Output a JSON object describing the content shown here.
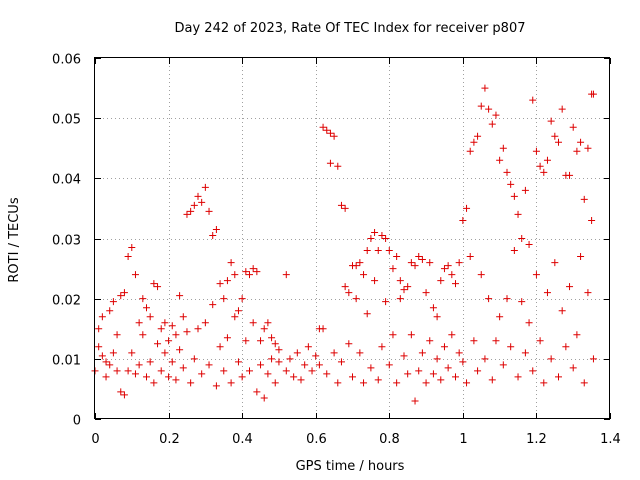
{
  "chart_data": {
    "type": "scatter",
    "title": "Day 242 of 2023, Rate Of TEC Index for receiver p807",
    "xlabel": "GPS time / hours",
    "ylabel": "ROTI / TECUs",
    "xlim": [
      0,
      1.4
    ],
    "ylim": [
      0,
      0.06
    ],
    "x_ticks": [
      "0",
      "0.2",
      "0.4",
      "0.6",
      "0.8",
      "1",
      "1.2",
      "1.4"
    ],
    "y_ticks": [
      "0",
      "0.01",
      "0.02",
      "0.03",
      "0.04",
      "0.05",
      "0.06"
    ],
    "grid": true,
    "marker": "+",
    "color": "#dd0000",
    "series": [
      {
        "points": [
          [
            0.0,
            0.008
          ],
          [
            0.01,
            0.012
          ],
          [
            0.01,
            0.015
          ],
          [
            0.02,
            0.0105
          ],
          [
            0.02,
            0.017
          ],
          [
            0.03,
            0.007
          ],
          [
            0.03,
            0.0095
          ],
          [
            0.04,
            0.018
          ],
          [
            0.04,
            0.009
          ],
          [
            0.05,
            0.0195
          ],
          [
            0.05,
            0.011
          ],
          [
            0.06,
            0.014
          ],
          [
            0.06,
            0.008
          ],
          [
            0.07,
            0.0205
          ],
          [
            0.07,
            0.0045
          ],
          [
            0.08,
            0.004
          ],
          [
            0.08,
            0.021
          ],
          [
            0.09,
            0.027
          ],
          [
            0.09,
            0.008
          ],
          [
            0.1,
            0.0285
          ],
          [
            0.1,
            0.011
          ],
          [
            0.11,
            0.024
          ],
          [
            0.11,
            0.0075
          ],
          [
            0.12,
            0.016
          ],
          [
            0.12,
            0.009
          ],
          [
            0.13,
            0.02
          ],
          [
            0.13,
            0.014
          ],
          [
            0.14,
            0.0185
          ],
          [
            0.14,
            0.007
          ],
          [
            0.15,
            0.017
          ],
          [
            0.15,
            0.0095
          ],
          [
            0.16,
            0.0225
          ],
          [
            0.16,
            0.006
          ],
          [
            0.17,
            0.022
          ],
          [
            0.17,
            0.0125
          ],
          [
            0.18,
            0.015
          ],
          [
            0.18,
            0.008
          ],
          [
            0.19,
            0.016
          ],
          [
            0.19,
            0.011
          ],
          [
            0.2,
            0.013
          ],
          [
            0.2,
            0.007
          ],
          [
            0.21,
            0.0155
          ],
          [
            0.21,
            0.0095
          ],
          [
            0.22,
            0.014
          ],
          [
            0.22,
            0.0065
          ],
          [
            0.23,
            0.0205
          ],
          [
            0.23,
            0.0115
          ],
          [
            0.24,
            0.017
          ],
          [
            0.24,
            0.0085
          ],
          [
            0.25,
            0.034
          ],
          [
            0.25,
            0.0145
          ],
          [
            0.26,
            0.0345
          ],
          [
            0.26,
            0.006
          ],
          [
            0.27,
            0.0355
          ],
          [
            0.27,
            0.01
          ],
          [
            0.28,
            0.037
          ],
          [
            0.28,
            0.015
          ],
          [
            0.29,
            0.036
          ],
          [
            0.29,
            0.0075
          ],
          [
            0.3,
            0.0385
          ],
          [
            0.3,
            0.016
          ],
          [
            0.31,
            0.0345
          ],
          [
            0.31,
            0.009
          ],
          [
            0.32,
            0.0305
          ],
          [
            0.32,
            0.019
          ],
          [
            0.33,
            0.0315
          ],
          [
            0.33,
            0.0055
          ],
          [
            0.34,
            0.0225
          ],
          [
            0.34,
            0.012
          ],
          [
            0.35,
            0.02
          ],
          [
            0.35,
            0.008
          ],
          [
            0.36,
            0.023
          ],
          [
            0.36,
            0.0135
          ],
          [
            0.37,
            0.026
          ],
          [
            0.37,
            0.006
          ],
          [
            0.38,
            0.024
          ],
          [
            0.38,
            0.017
          ],
          [
            0.39,
            0.018
          ],
          [
            0.39,
            0.0095
          ],
          [
            0.4,
            0.02
          ],
          [
            0.4,
            0.007
          ],
          [
            0.41,
            0.0245
          ],
          [
            0.41,
            0.013
          ],
          [
            0.42,
            0.024
          ],
          [
            0.42,
            0.008
          ],
          [
            0.43,
            0.025
          ],
          [
            0.43,
            0.016
          ],
          [
            0.44,
            0.0245
          ],
          [
            0.44,
            0.0045
          ],
          [
            0.45,
            0.013
          ],
          [
            0.45,
            0.009
          ],
          [
            0.46,
            0.015
          ],
          [
            0.46,
            0.0035
          ],
          [
            0.47,
            0.016
          ],
          [
            0.47,
            0.0075
          ],
          [
            0.48,
            0.0135
          ],
          [
            0.48,
            0.01
          ],
          [
            0.49,
            0.0125
          ],
          [
            0.49,
            0.006
          ],
          [
            0.5,
            0.0095
          ],
          [
            0.5,
            0.0115
          ],
          [
            0.52,
            0.024
          ],
          [
            0.52,
            0.008
          ],
          [
            0.53,
            0.01
          ],
          [
            0.54,
            0.007
          ],
          [
            0.55,
            0.011
          ],
          [
            0.56,
            0.0065
          ],
          [
            0.57,
            0.009
          ],
          [
            0.58,
            0.012
          ],
          [
            0.59,
            0.008
          ],
          [
            0.6,
            0.0105
          ],
          [
            0.61,
            0.015
          ],
          [
            0.61,
            0.009
          ],
          [
            0.62,
            0.0485
          ],
          [
            0.62,
            0.015
          ],
          [
            0.63,
            0.048
          ],
          [
            0.63,
            0.0075
          ],
          [
            0.64,
            0.0475
          ],
          [
            0.64,
            0.0425
          ],
          [
            0.65,
            0.047
          ],
          [
            0.65,
            0.011
          ],
          [
            0.66,
            0.042
          ],
          [
            0.66,
            0.006
          ],
          [
            0.67,
            0.0355
          ],
          [
            0.67,
            0.0095
          ],
          [
            0.68,
            0.035
          ],
          [
            0.68,
            0.022
          ],
          [
            0.69,
            0.021
          ],
          [
            0.69,
            0.0125
          ],
          [
            0.7,
            0.0255
          ],
          [
            0.7,
            0.007
          ],
          [
            0.71,
            0.0255
          ],
          [
            0.71,
            0.02
          ],
          [
            0.72,
            0.026
          ],
          [
            0.72,
            0.011
          ],
          [
            0.73,
            0.024
          ],
          [
            0.73,
            0.006
          ],
          [
            0.74,
            0.028
          ],
          [
            0.74,
            0.0175
          ],
          [
            0.75,
            0.03
          ],
          [
            0.75,
            0.0085
          ],
          [
            0.76,
            0.031
          ],
          [
            0.76,
            0.023
          ],
          [
            0.77,
            0.028
          ],
          [
            0.77,
            0.0065
          ],
          [
            0.78,
            0.0305
          ],
          [
            0.78,
            0.012
          ],
          [
            0.79,
            0.03
          ],
          [
            0.79,
            0.0195
          ],
          [
            0.8,
            0.028
          ],
          [
            0.8,
            0.009
          ],
          [
            0.81,
            0.025
          ],
          [
            0.81,
            0.014
          ],
          [
            0.82,
            0.027
          ],
          [
            0.82,
            0.006
          ],
          [
            0.83,
            0.023
          ],
          [
            0.83,
            0.02
          ],
          [
            0.84,
            0.0215
          ],
          [
            0.84,
            0.0105
          ],
          [
            0.85,
            0.022
          ],
          [
            0.85,
            0.0075
          ],
          [
            0.86,
            0.026
          ],
          [
            0.86,
            0.014
          ],
          [
            0.87,
            0.0255
          ],
          [
            0.87,
            0.003
          ],
          [
            0.88,
            0.027
          ],
          [
            0.88,
            0.008
          ],
          [
            0.89,
            0.0265
          ],
          [
            0.89,
            0.011
          ],
          [
            0.9,
            0.021
          ],
          [
            0.9,
            0.006
          ],
          [
            0.91,
            0.026
          ],
          [
            0.91,
            0.013
          ],
          [
            0.92,
            0.0185
          ],
          [
            0.92,
            0.0075
          ],
          [
            0.93,
            0.017
          ],
          [
            0.93,
            0.01
          ],
          [
            0.94,
            0.023
          ],
          [
            0.94,
            0.0065
          ],
          [
            0.95,
            0.025
          ],
          [
            0.95,
            0.012
          ],
          [
            0.96,
            0.0255
          ],
          [
            0.96,
            0.0085
          ],
          [
            0.97,
            0.024
          ],
          [
            0.97,
            0.014
          ],
          [
            0.98,
            0.0225
          ],
          [
            0.98,
            0.007
          ],
          [
            0.99,
            0.026
          ],
          [
            0.99,
            0.011
          ],
          [
            1.0,
            0.033
          ],
          [
            1.0,
            0.0095
          ],
          [
            1.01,
            0.035
          ],
          [
            1.01,
            0.006
          ],
          [
            1.02,
            0.0445
          ],
          [
            1.02,
            0.027
          ],
          [
            1.03,
            0.046
          ],
          [
            1.03,
            0.013
          ],
          [
            1.04,
            0.047
          ],
          [
            1.04,
            0.008
          ],
          [
            1.05,
            0.052
          ],
          [
            1.05,
            0.024
          ],
          [
            1.06,
            0.055
          ],
          [
            1.06,
            0.01
          ],
          [
            1.07,
            0.0515
          ],
          [
            1.07,
            0.02
          ],
          [
            1.08,
            0.049
          ],
          [
            1.08,
            0.0065
          ],
          [
            1.09,
            0.0505
          ],
          [
            1.09,
            0.013
          ],
          [
            1.1,
            0.043
          ],
          [
            1.1,
            0.017
          ],
          [
            1.11,
            0.045
          ],
          [
            1.11,
            0.009
          ],
          [
            1.12,
            0.041
          ],
          [
            1.12,
            0.02
          ],
          [
            1.13,
            0.039
          ],
          [
            1.13,
            0.012
          ],
          [
            1.14,
            0.037
          ],
          [
            1.14,
            0.028
          ],
          [
            1.15,
            0.034
          ],
          [
            1.15,
            0.007
          ],
          [
            1.16,
            0.03
          ],
          [
            1.16,
            0.0195
          ],
          [
            1.17,
            0.038
          ],
          [
            1.17,
            0.011
          ],
          [
            1.18,
            0.029
          ],
          [
            1.18,
            0.016
          ],
          [
            1.19,
            0.053
          ],
          [
            1.19,
            0.008
          ],
          [
            1.2,
            0.0445
          ],
          [
            1.2,
            0.024
          ],
          [
            1.21,
            0.042
          ],
          [
            1.21,
            0.013
          ],
          [
            1.22,
            0.041
          ],
          [
            1.22,
            0.006
          ],
          [
            1.23,
            0.043
          ],
          [
            1.23,
            0.021
          ],
          [
            1.24,
            0.0495
          ],
          [
            1.24,
            0.01
          ],
          [
            1.25,
            0.047
          ],
          [
            1.25,
            0.026
          ],
          [
            1.26,
            0.046
          ],
          [
            1.26,
            0.007
          ],
          [
            1.27,
            0.0515
          ],
          [
            1.27,
            0.018
          ],
          [
            1.28,
            0.0405
          ],
          [
            1.28,
            0.012
          ],
          [
            1.29,
            0.0405
          ],
          [
            1.29,
            0.022
          ],
          [
            1.3,
            0.0485
          ],
          [
            1.3,
            0.0085
          ],
          [
            1.31,
            0.0445
          ],
          [
            1.31,
            0.014
          ],
          [
            1.32,
            0.046
          ],
          [
            1.32,
            0.027
          ],
          [
            1.33,
            0.0365
          ],
          [
            1.33,
            0.006
          ],
          [
            1.34,
            0.045
          ],
          [
            1.34,
            0.021
          ],
          [
            1.35,
            0.054
          ],
          [
            1.35,
            0.033
          ],
          [
            1.355,
            0.054
          ],
          [
            1.355,
            0.01
          ]
        ]
      }
    ]
  }
}
